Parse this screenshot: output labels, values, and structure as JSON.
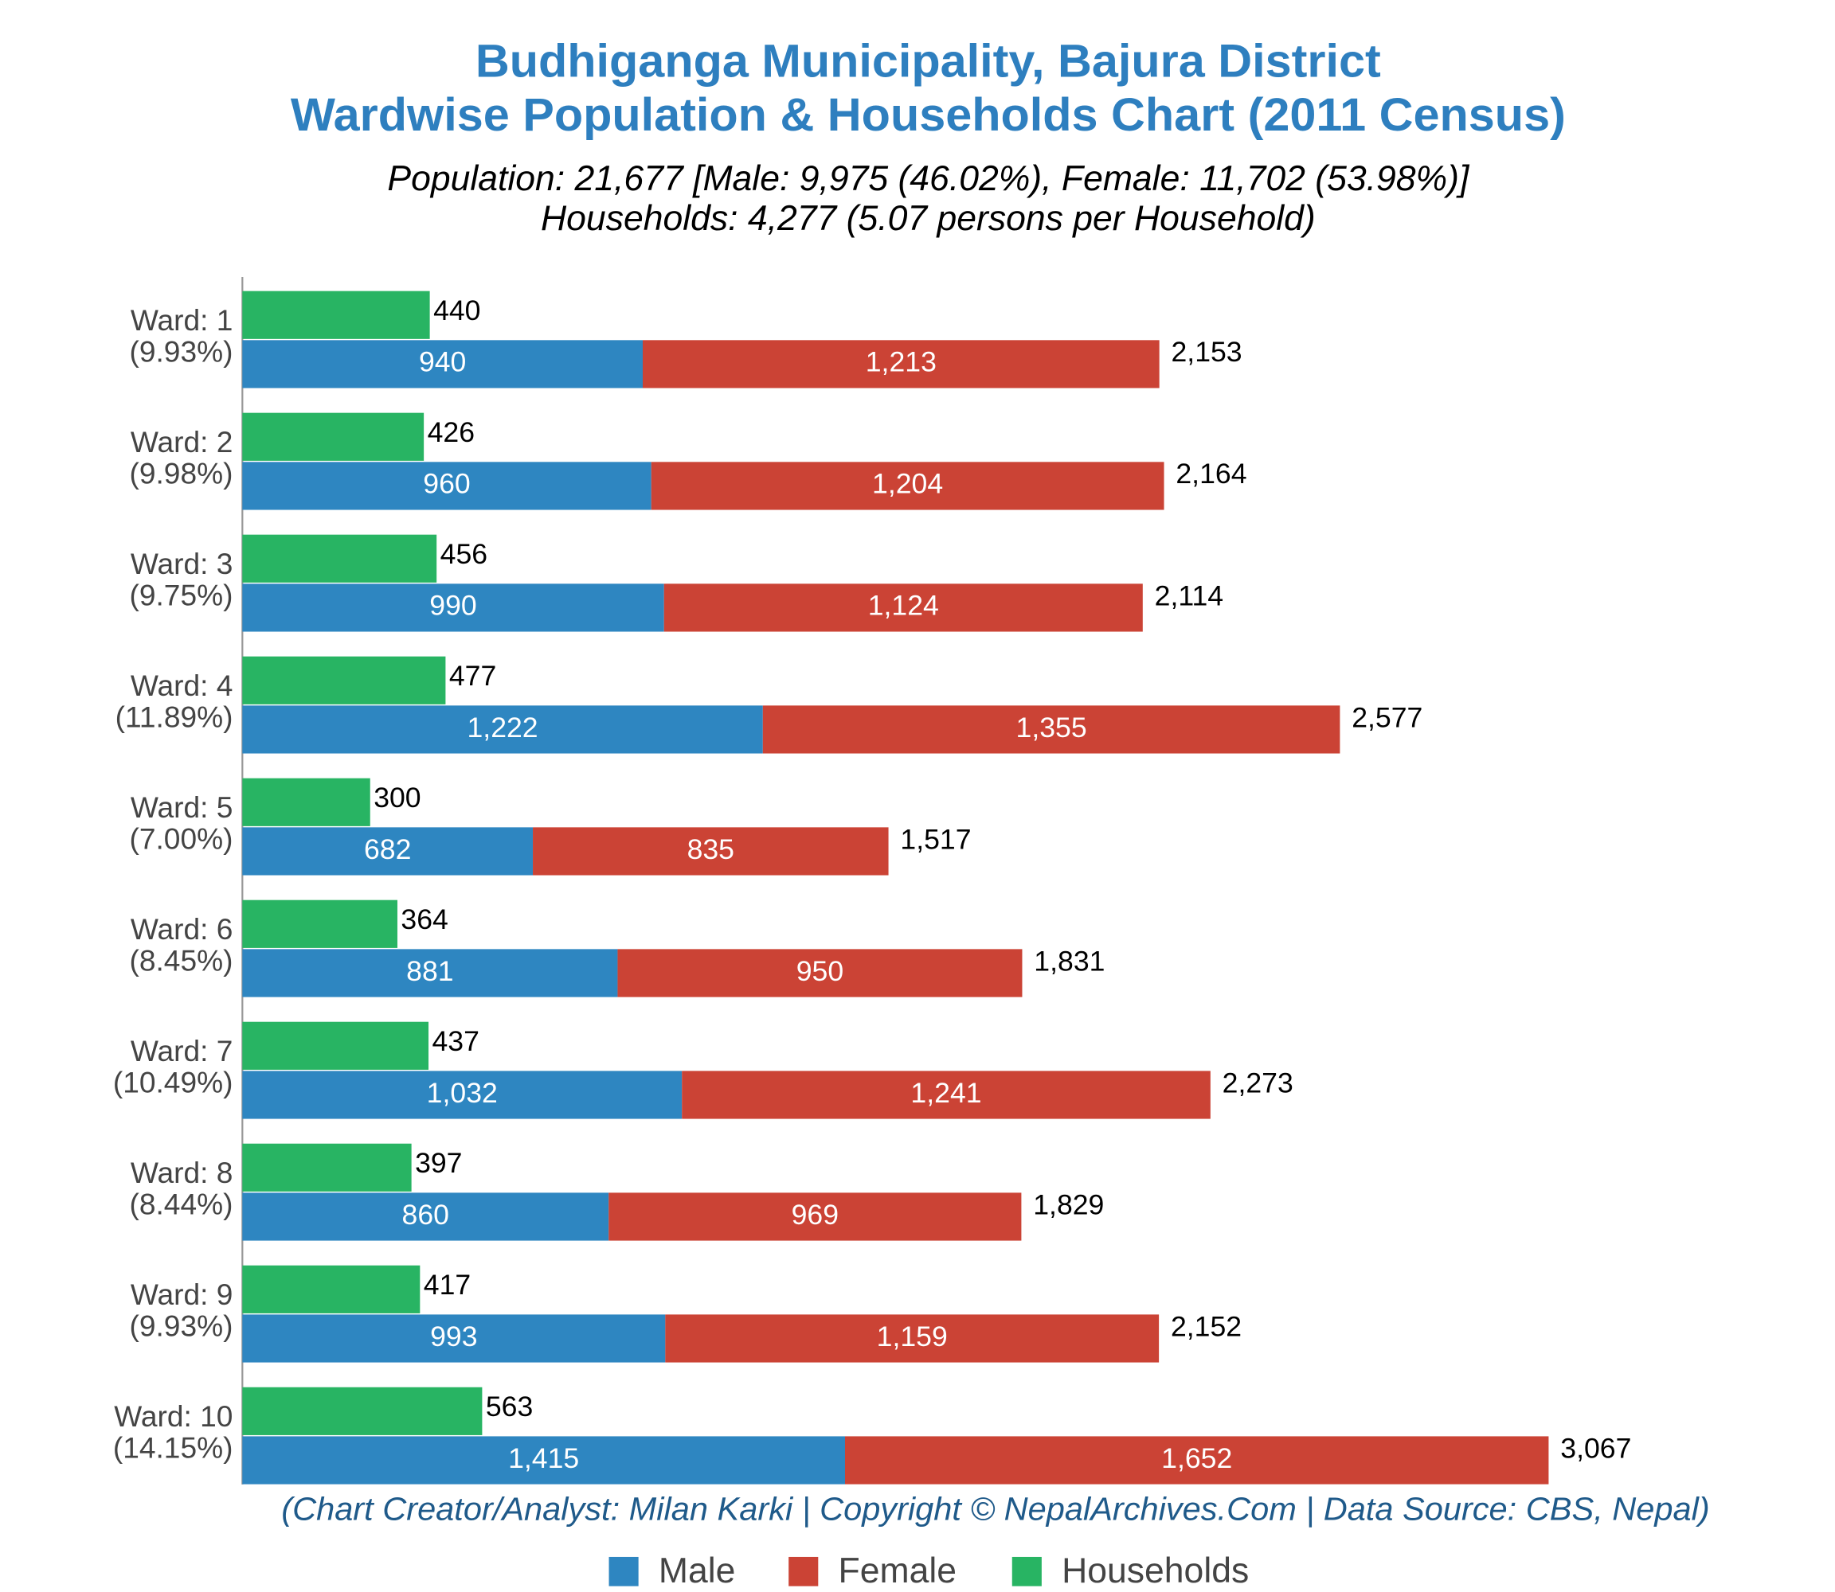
{
  "chart_data": {
    "type": "stacked-bar-horizontal",
    "title": [
      "Budhiganga Municipality, Bajura District",
      "Wardwise Population & Households Chart (2011 Census)"
    ],
    "subtitle": [
      "Population: 21,677 [Male: 9,975 (46.02%), Female: 11,702 (53.98%)]",
      "Households: 4,277 (5.07 persons per Household)"
    ],
    "footer": "(Chart Creator/Analyst: Milan Karki | Copyright © NepalArchives.Com | Data Source: CBS, Nepal)",
    "categories": [
      "Ward: 1",
      "Ward: 2",
      "Ward: 3",
      "Ward: 4",
      "Ward: 5",
      "Ward: 6",
      "Ward: 7",
      "Ward: 8",
      "Ward: 9",
      "Ward: 10"
    ],
    "category_shares": [
      "(9.93%)",
      "(9.98%)",
      "(9.75%)",
      "(11.89%)",
      "(7.00%)",
      "(8.45%)",
      "(10.49%)",
      "(8.44%)",
      "(9.93%)",
      "(14.15%)"
    ],
    "series": [
      {
        "name": "Male",
        "color": "#2e86c1",
        "stack": "population",
        "values": [
          940,
          960,
          990,
          1222,
          682,
          881,
          1032,
          860,
          993,
          1415
        ],
        "value_labels": [
          "940",
          "960",
          "990",
          "1,222",
          "682",
          "881",
          "1,032",
          "860",
          "993",
          "1,415"
        ]
      },
      {
        "name": "Female",
        "color": "#cb4335",
        "stack": "population",
        "values": [
          1213,
          1204,
          1124,
          1355,
          835,
          950,
          1241,
          969,
          1159,
          1652
        ],
        "value_labels": [
          "1,213",
          "1,204",
          "1,124",
          "1,355",
          "835",
          "950",
          "1,241",
          "969",
          "1,159",
          "1,652"
        ]
      },
      {
        "name": "Households",
        "color": "#28b463",
        "stack": "households",
        "values": [
          440,
          426,
          456,
          477,
          300,
          364,
          437,
          397,
          417,
          563
        ],
        "value_labels": [
          "440",
          "426",
          "456",
          "477",
          "300",
          "364",
          "437",
          "397",
          "417",
          "563"
        ]
      }
    ],
    "totals": {
      "values": [
        2153,
        2164,
        2114,
        2577,
        1517,
        1831,
        2273,
        1829,
        2152,
        3067
      ],
      "value_labels": [
        "2,153",
        "2,164",
        "2,114",
        "2,577",
        "1,517",
        "1,831",
        "2,273",
        "1,829",
        "2,152",
        "3,067"
      ]
    },
    "xlim": [
      0,
      3720
    ],
    "legend": "bottom"
  }
}
